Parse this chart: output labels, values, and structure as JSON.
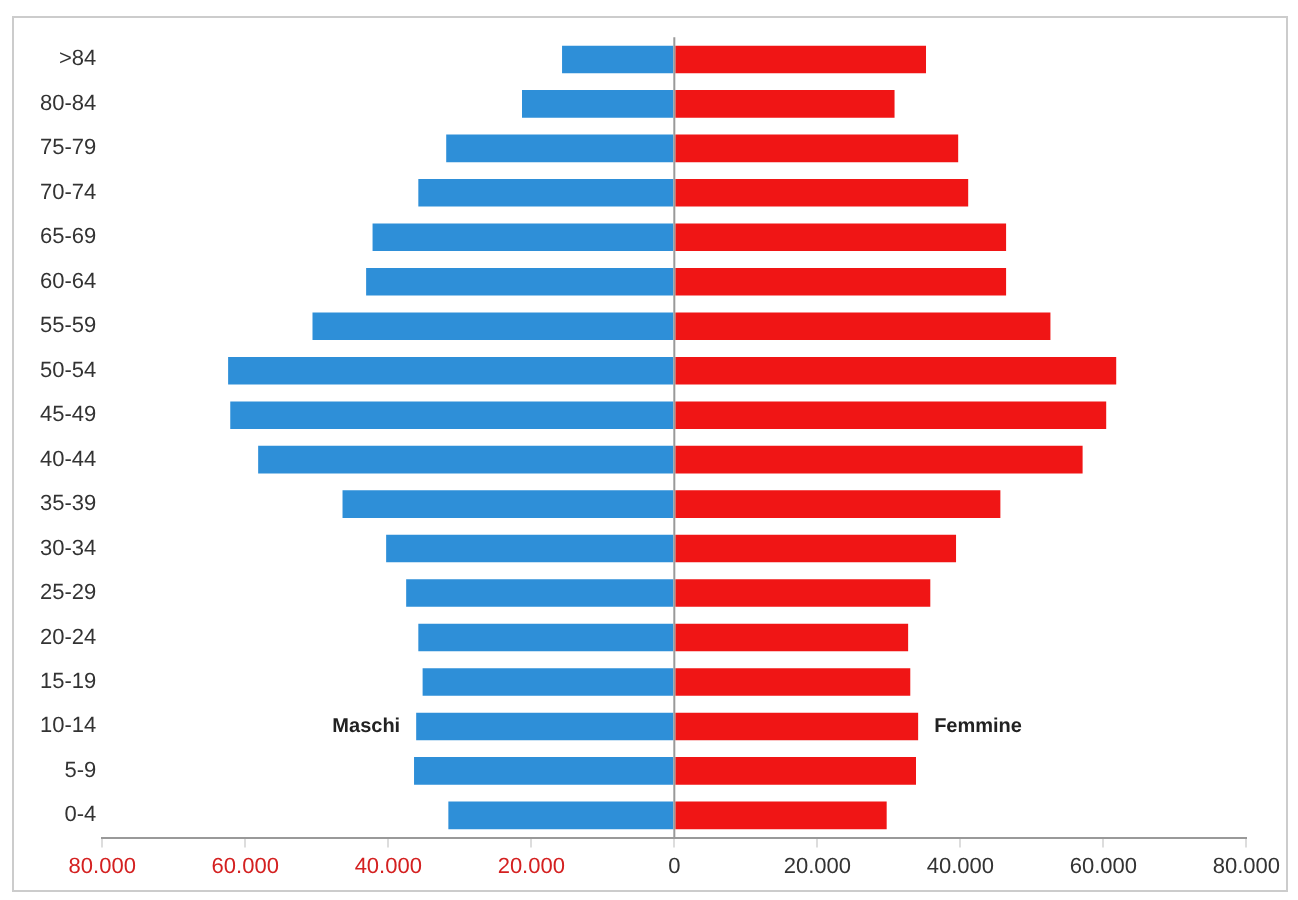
{
  "chart_data": {
    "type": "bar",
    "orientation": "horizontal",
    "stacked": true,
    "categories": [
      ">84",
      "80-84",
      "75-79",
      "70-74",
      "65-69",
      "60-64",
      "55-59",
      "50-54",
      "45-49",
      "40-44",
      "35-39",
      "30-34",
      "25-29",
      "20-24",
      "15-19",
      "10-14",
      "5-9",
      "0-4"
    ],
    "series": [
      {
        "name": "Maschi",
        "color": "#2e8fd8",
        "values": [
          -15700,
          -21300,
          -31900,
          -35800,
          -42200,
          -43100,
          -50600,
          -62400,
          -62100,
          -58200,
          -46400,
          -40300,
          -37500,
          -35800,
          -35200,
          -36100,
          -36400,
          -31600
        ]
      },
      {
        "name": "Femmine",
        "color": "#f01515",
        "values": [
          35200,
          30800,
          39700,
          41100,
          46400,
          46400,
          52600,
          61800,
          60400,
          57100,
          45600,
          39400,
          35800,
          32700,
          33000,
          34100,
          33800,
          29700
        ]
      }
    ],
    "xlim": [
      -80000,
      80000
    ],
    "xticks": [
      {
        "value": -80000,
        "label": "80.000"
      },
      {
        "value": -60000,
        "label": "60.000"
      },
      {
        "value": -40000,
        "label": "40.000"
      },
      {
        "value": -20000,
        "label": "20.000"
      },
      0,
      {
        "value": 20000,
        "label": "20.000"
      },
      {
        "value": 40000,
        "label": "40.000"
      },
      {
        "value": 60000,
        "label": "60.000"
      },
      {
        "value": 80000,
        "label": "80.000"
      }
    ],
    "ref_lines": [
      {
        "axis": "x",
        "value": 0,
        "color": "#999999"
      }
    ],
    "grid": false,
    "legend": false
  }
}
